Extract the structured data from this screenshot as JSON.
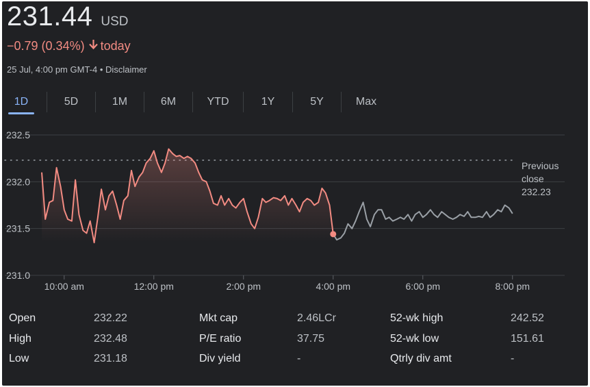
{
  "quote": {
    "price": "231.44",
    "currency": "USD",
    "change": "−0.79 (0.34%)",
    "direction_icon": "arrow-down-icon",
    "change_suffix": "today",
    "timestamp": "25 Jul, 4:00 pm GMT-4",
    "separator": "•",
    "disclaimer": "Disclaimer"
  },
  "tabs": [
    {
      "label": "1D",
      "active": true
    },
    {
      "label": "5D"
    },
    {
      "label": "1M"
    },
    {
      "label": "6M"
    },
    {
      "label": "YTD"
    },
    {
      "label": "1Y"
    },
    {
      "label": "5Y"
    },
    {
      "label": "Max"
    }
  ],
  "colors": {
    "negative": "#f28b82",
    "after_hours": "#9aa0a6",
    "accent": "#8ab4f8",
    "background": "#202124"
  },
  "chart_data": {
    "type": "line",
    "y_ticks": [
      "232.5",
      "232.0",
      "231.5",
      "231.0"
    ],
    "ylim": [
      231.0,
      232.5
    ],
    "x_ticks": [
      "10:00 am",
      "12:00 pm",
      "2:00 pm",
      "4:00 pm",
      "6:00 pm",
      "8:00 pm"
    ],
    "x_tick_hours": [
      10,
      12,
      14,
      16,
      18,
      20
    ],
    "xlim_hours": [
      9.5,
      20.7
    ],
    "previous_close": 232.23,
    "previous_close_label": [
      "Previous",
      "close",
      "232.23"
    ],
    "last_price_marker": {
      "hour": 16.0,
      "value": 231.44
    },
    "series": [
      {
        "session": "regular",
        "x": [
          9.5,
          9.58,
          9.67,
          9.75,
          9.83,
          9.92,
          10.0,
          10.08,
          10.17,
          10.25,
          10.33,
          10.42,
          10.5,
          10.58,
          10.67,
          10.75,
          10.83,
          10.92,
          11.0,
          11.08,
          11.17,
          11.25,
          11.33,
          11.42,
          11.5,
          11.58,
          11.67,
          11.75,
          11.83,
          11.92,
          12.0,
          12.08,
          12.17,
          12.25,
          12.33,
          12.42,
          12.5,
          12.58,
          12.67,
          12.75,
          12.83,
          12.92,
          13.0,
          13.08,
          13.17,
          13.25,
          13.33,
          13.42,
          13.5,
          13.58,
          13.67,
          13.75,
          13.83,
          13.92,
          14.0,
          14.08,
          14.17,
          14.25,
          14.33,
          14.42,
          14.5,
          14.58,
          14.67,
          14.75,
          14.83,
          14.92,
          15.0,
          15.08,
          15.17,
          15.25,
          15.33,
          15.42,
          15.5,
          15.58,
          15.67,
          15.75,
          15.83,
          15.92,
          16.0
        ],
        "values": [
          232.1,
          231.6,
          231.78,
          231.8,
          232.15,
          231.95,
          231.7,
          231.6,
          231.58,
          232.02,
          231.65,
          231.48,
          231.45,
          231.58,
          231.35,
          231.62,
          231.92,
          231.7,
          231.85,
          231.9,
          231.75,
          231.6,
          231.8,
          231.85,
          232.12,
          231.95,
          232.05,
          232.1,
          232.2,
          232.25,
          232.33,
          232.2,
          232.1,
          232.2,
          232.35,
          232.3,
          232.27,
          232.28,
          232.25,
          232.27,
          232.25,
          232.2,
          232.1,
          232.02,
          232.0,
          231.9,
          231.77,
          231.75,
          231.85,
          231.75,
          231.82,
          231.75,
          231.72,
          231.78,
          231.82,
          231.68,
          231.55,
          231.5,
          231.62,
          231.82,
          231.78,
          231.8,
          231.83,
          231.82,
          231.8,
          231.85,
          231.75,
          231.82,
          231.75,
          231.68,
          231.78,
          231.82,
          231.8,
          231.75,
          231.78,
          231.93,
          231.88,
          231.75,
          231.44
        ]
      },
      {
        "session": "after-hours",
        "x": [
          16.0,
          16.08,
          16.17,
          16.25,
          16.33,
          16.42,
          16.5,
          16.58,
          16.67,
          16.75,
          16.83,
          16.92,
          17.0,
          17.08,
          17.17,
          17.25,
          17.33,
          17.42,
          17.5,
          17.58,
          17.67,
          17.75,
          17.83,
          17.92,
          18.0,
          18.08,
          18.17,
          18.25,
          18.33,
          18.42,
          18.5,
          18.58,
          18.67,
          18.75,
          18.83,
          18.92,
          19.0,
          19.08,
          19.17,
          19.25,
          19.33,
          19.42,
          19.5,
          19.58,
          19.67,
          19.75,
          19.83,
          19.92,
          20.0
        ],
        "values": [
          231.44,
          231.38,
          231.4,
          231.45,
          231.55,
          231.5,
          231.58,
          231.68,
          231.78,
          231.6,
          231.52,
          231.65,
          231.7,
          231.7,
          231.6,
          231.62,
          231.58,
          231.6,
          231.62,
          231.6,
          231.65,
          231.58,
          231.65,
          231.68,
          231.62,
          231.65,
          231.7,
          231.65,
          231.62,
          231.68,
          231.65,
          231.62,
          231.6,
          231.62,
          231.65,
          231.63,
          231.68,
          231.62,
          231.62,
          231.63,
          231.62,
          231.68,
          231.62,
          231.65,
          231.7,
          231.68,
          231.75,
          231.72,
          231.66
        ]
      }
    ]
  },
  "stats": [
    [
      {
        "label": "Open",
        "value": "232.22"
      },
      {
        "label": "High",
        "value": "232.48"
      },
      {
        "label": "Low",
        "value": "231.18"
      }
    ],
    [
      {
        "label": "Mkt cap",
        "value": "2.46LCr"
      },
      {
        "label": "P/E ratio",
        "value": "37.75"
      },
      {
        "label": "Div yield",
        "value": "-"
      }
    ],
    [
      {
        "label": "52-wk high",
        "value": "242.52"
      },
      {
        "label": "52-wk low",
        "value": "151.61"
      },
      {
        "label": "Qtrly div amt",
        "value": "-"
      }
    ]
  ]
}
